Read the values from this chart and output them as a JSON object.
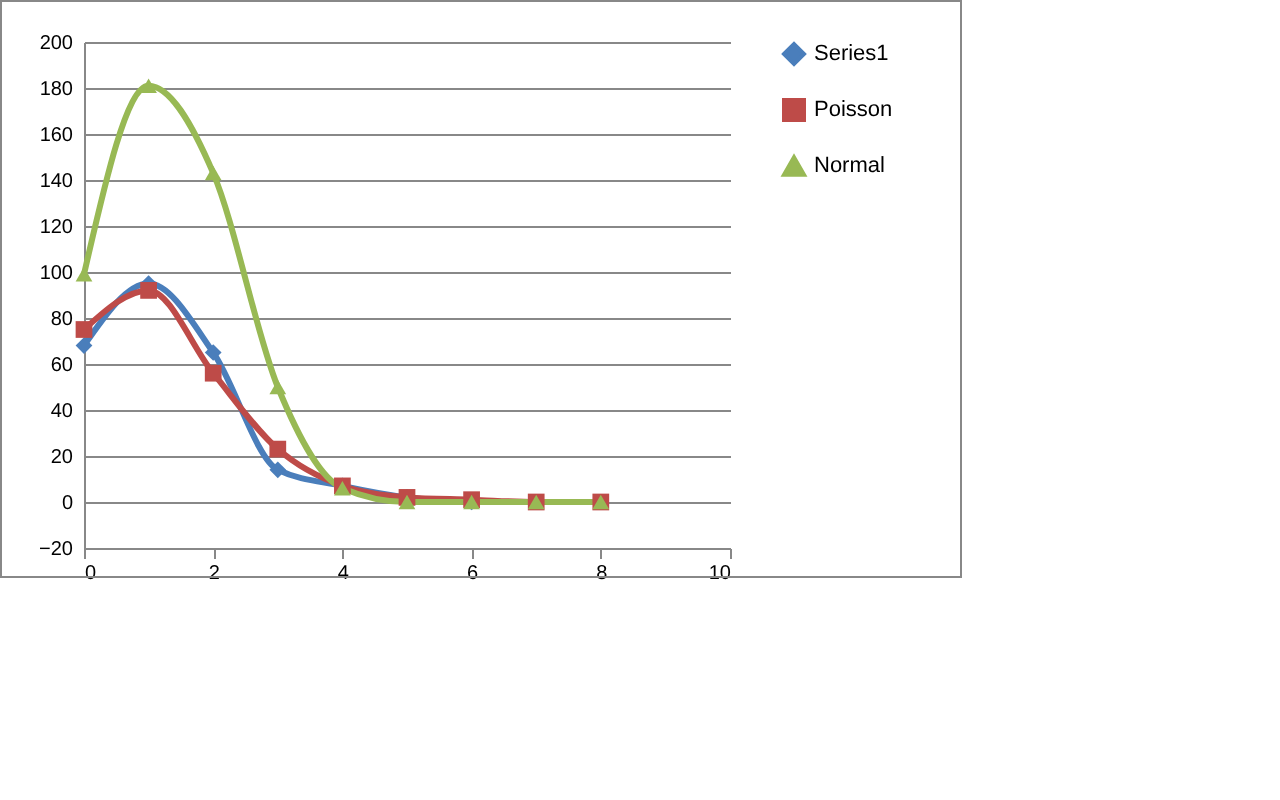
{
  "chart_data": {
    "type": "line",
    "x": [
      0,
      1,
      2,
      3,
      4,
      5,
      6,
      7,
      8
    ],
    "series": [
      {
        "name": "Series1",
        "color": "#4a7ebb",
        "marker": "diamond",
        "values": [
          68,
          95,
          65,
          14,
          7,
          2,
          0,
          null,
          null
        ]
      },
      {
        "name": "Poisson",
        "color": "#be4b48",
        "marker": "square",
        "values": [
          75,
          92,
          56,
          23,
          7,
          2,
          1,
          0,
          0
        ]
      },
      {
        "name": "Normal",
        "color": "#98b954",
        "marker": "triangle",
        "values": [
          99,
          181,
          143,
          50,
          6,
          0,
          0,
          0,
          0
        ]
      }
    ],
    "xlim": [
      0,
      10
    ],
    "xticks": [
      0,
      2,
      4,
      6,
      8,
      10
    ],
    "ylim": [
      -20,
      200
    ],
    "yticks": [
      -20,
      0,
      20,
      40,
      60,
      80,
      100,
      120,
      140,
      160,
      180,
      200
    ],
    "grid": "y",
    "legend": "right"
  }
}
